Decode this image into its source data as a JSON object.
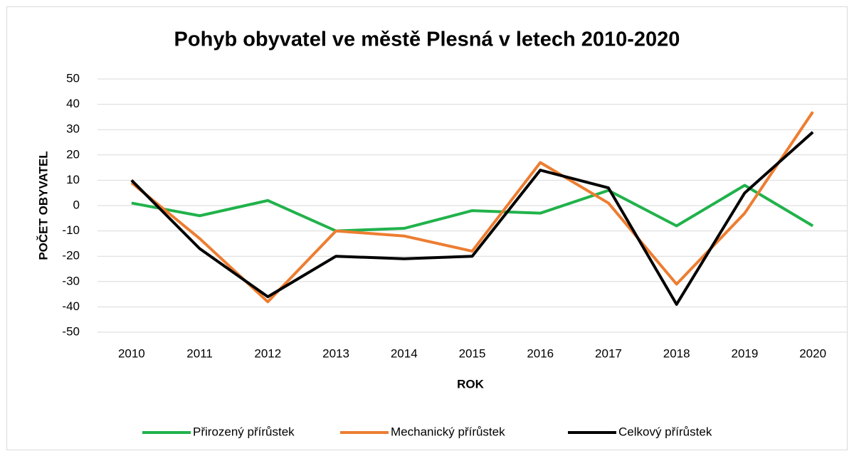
{
  "chart_data": {
    "type": "line",
    "title": "Pohyb obyvatel ve městě Plesná v letech 2010-2020",
    "x_label": "ROK",
    "y_label": "POČET OBYVATEL",
    "categories": [
      "2010",
      "2011",
      "2012",
      "2013",
      "2014",
      "2015",
      "2016",
      "2017",
      "2018",
      "2019",
      "2020"
    ],
    "series": [
      {
        "name": "Přirozený přírůstek",
        "color": "#21b24b",
        "values": [
          1,
          -4,
          2,
          -10,
          -9,
          -2,
          -3,
          6,
          -8,
          8,
          -8
        ]
      },
      {
        "name": "Mechanický přírůstek",
        "color": "#ed7d31",
        "values": [
          9,
          -13,
          -38,
          -10,
          -12,
          -18,
          17,
          1,
          -31,
          -3,
          37
        ]
      },
      {
        "name": "Celkový přírůstek",
        "color": "#000000",
        "values": [
          10,
          -17,
          -36,
          -20,
          -21,
          -20,
          14,
          7,
          -39,
          5,
          29
        ]
      }
    ],
    "ylim": [
      -50,
      50
    ],
    "yticks": [
      -50,
      -40,
      -30,
      -20,
      -10,
      0,
      10,
      20,
      30,
      40,
      50
    ],
    "grid": true,
    "legend": "bottom"
  }
}
